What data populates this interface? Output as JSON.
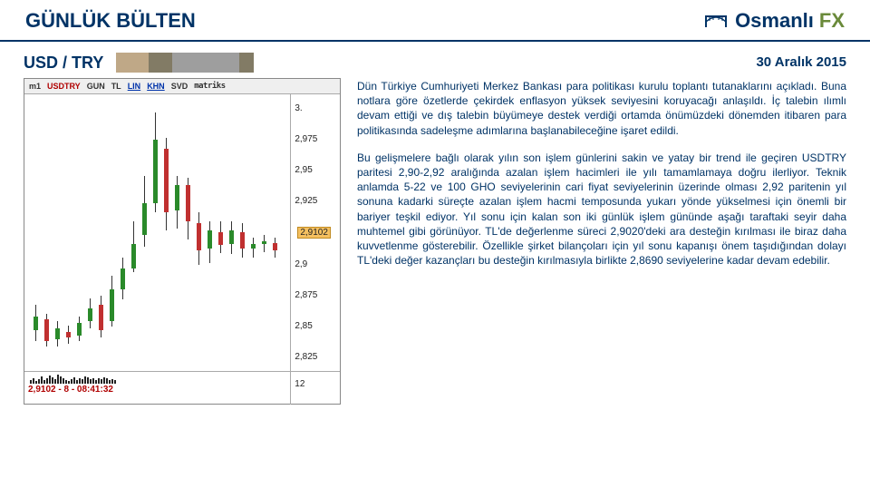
{
  "header": {
    "bulletin_title": "GÜNLÜK BÜLTEN",
    "brand_name": "Osmanlı",
    "brand_suffix": "FX"
  },
  "pair": {
    "label": "USD / TRY"
  },
  "date": "30 Aralık 2015",
  "chart": {
    "toolbar": {
      "indicator": "m1",
      "symbol": "USDTRY",
      "b1": "GUN",
      "b2": "TL",
      "b3": "LIN",
      "b4": "KHN",
      "b5": "SVD",
      "brand": "matriks"
    },
    "y_ticks": [
      "3.",
      "2,975",
      "2,95",
      "2,925",
      "2,9102",
      "2,9",
      "2,875",
      "2,85",
      "2,825"
    ],
    "status_line": "2,9102 - 8 - 08:41:32",
    "volume_label": "12",
    "candles": [
      {
        "x": 10,
        "open": 260,
        "close": 245,
        "high": 232,
        "low": 272,
        "up": true
      },
      {
        "x": 22,
        "open": 248,
        "close": 272,
        "high": 242,
        "low": 278,
        "up": false
      },
      {
        "x": 34,
        "open": 270,
        "close": 258,
        "high": 250,
        "low": 278,
        "up": true
      },
      {
        "x": 46,
        "open": 262,
        "close": 268,
        "high": 255,
        "low": 275,
        "up": false
      },
      {
        "x": 58,
        "open": 266,
        "close": 252,
        "high": 245,
        "low": 272,
        "up": true
      },
      {
        "x": 70,
        "open": 250,
        "close": 236,
        "high": 225,
        "low": 258,
        "up": true
      },
      {
        "x": 82,
        "open": 232,
        "close": 260,
        "high": 222,
        "low": 268,
        "up": false
      },
      {
        "x": 94,
        "open": 250,
        "close": 215,
        "high": 200,
        "low": 256,
        "up": true
      },
      {
        "x": 106,
        "open": 215,
        "close": 192,
        "high": 180,
        "low": 226,
        "up": true
      },
      {
        "x": 118,
        "open": 192,
        "close": 165,
        "high": 140,
        "low": 196,
        "up": true
      },
      {
        "x": 130,
        "open": 155,
        "close": 120,
        "high": 90,
        "low": 168,
        "up": true
      },
      {
        "x": 142,
        "open": 120,
        "close": 50,
        "high": 20,
        "low": 130,
        "up": true
      },
      {
        "x": 154,
        "open": 60,
        "close": 130,
        "high": 48,
        "low": 150,
        "up": false
      },
      {
        "x": 166,
        "open": 128,
        "close": 100,
        "high": 90,
        "low": 148,
        "up": true
      },
      {
        "x": 178,
        "open": 100,
        "close": 140,
        "high": 92,
        "low": 160,
        "up": false
      },
      {
        "x": 190,
        "open": 142,
        "close": 172,
        "high": 130,
        "low": 188,
        "up": false
      },
      {
        "x": 202,
        "open": 170,
        "close": 150,
        "high": 140,
        "low": 186,
        "up": true
      },
      {
        "x": 214,
        "open": 152,
        "close": 166,
        "high": 140,
        "low": 175,
        "up": false
      },
      {
        "x": 226,
        "open": 165,
        "close": 150,
        "high": 140,
        "low": 176,
        "up": true
      },
      {
        "x": 238,
        "open": 152,
        "close": 170,
        "high": 142,
        "low": 180,
        "up": false
      },
      {
        "x": 250,
        "open": 170,
        "close": 165,
        "high": 158,
        "low": 180,
        "up": true
      },
      {
        "x": 262,
        "open": 165,
        "close": 162,
        "high": 155,
        "low": 174,
        "up": true
      },
      {
        "x": 274,
        "open": 164,
        "close": 172,
        "high": 158,
        "low": 180,
        "up": false
      }
    ],
    "volume_bars": [
      4,
      6,
      3,
      5,
      8,
      4,
      6,
      9,
      7,
      5,
      10,
      8,
      6,
      4,
      3,
      5,
      7,
      4,
      6,
      5,
      8,
      7,
      5,
      6,
      4,
      6,
      5,
      7,
      6,
      4,
      5,
      4
    ]
  },
  "body": {
    "p1": "Dün Türkiye Cumhuriyeti Merkez Bankası para politikası kurulu toplantı tutanaklarını açıkladı. Buna notlara göre özetlerde çekirdek enflasyon yüksek seviyesini koruyacağı anlaşıldı. İç talebin ılımlı devam ettiği ve dış talebin büyümeye destek verdiği ortamda önümüzdeki dönemden itibaren para politikasında sadeleşme adımlarına başlanabileceğine işaret edildi.",
    "p2": "Bu gelişmelere bağlı olarak yılın son işlem günlerini sakin ve yatay bir trend ile geçiren USDTRY paritesi 2,90-2,92 aralığında azalan işlem hacimleri ile yılı tamamlamaya doğru ilerliyor. Teknik anlamda 5-22 ve 100 GHO seviyelerinin cari fiyat seviyelerinin üzerinde olması 2,92 paritenin yıl sonuna kadarki süreçte azalan işlem hacmi temposunda yukarı yönde yükselmesi için önemli bir bariyer teşkil ediyor. Yıl sonu için kalan son iki günlük işlem gününde aşağı taraftaki seyir daha muhtemel gibi görünüyor. TL'de değerlenme süreci 2,9020'deki ara desteğin kırılması ile biraz daha kuvvetlenme gösterebilir. Özellikle şirket bilançoları için yıl sonu kapanışı önem taşıdığından dolayı TL'deki değer kazançları bu desteğin kırılmasıyla birlikte 2,8690 seviyelerine kadar devam edebilir."
  }
}
